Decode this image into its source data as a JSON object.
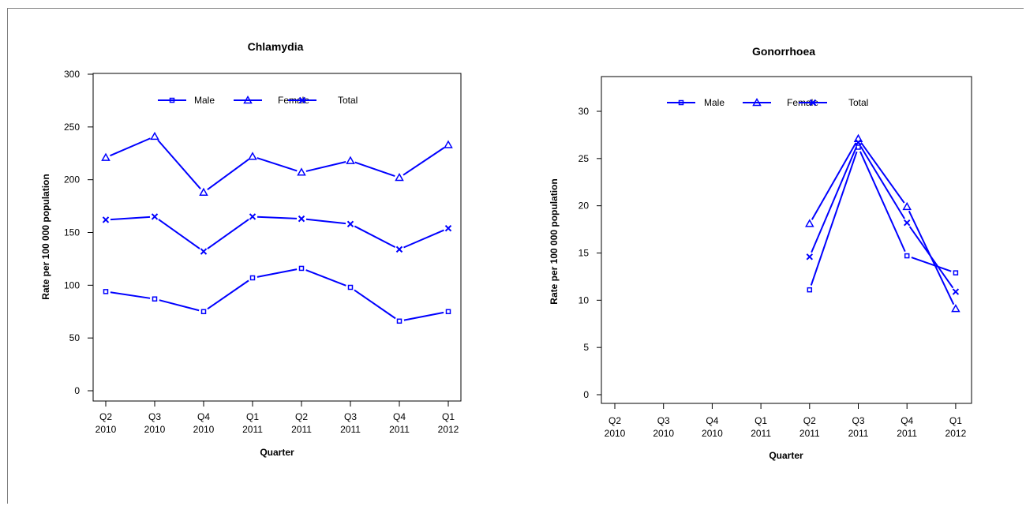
{
  "chart_data": [
    {
      "type": "line",
      "title": "Chlamydia",
      "xlabel": "Quarter",
      "ylabel": "Rate per 100 000 population",
      "categories": [
        [
          "Q2",
          "2010"
        ],
        [
          "Q3",
          "2010"
        ],
        [
          "Q4",
          "2010"
        ],
        [
          "Q1",
          "2011"
        ],
        [
          "Q2",
          "2011"
        ],
        [
          "Q3",
          "2011"
        ],
        [
          "Q4",
          "2011"
        ],
        [
          "Q1",
          "2012"
        ]
      ],
      "ylim": [
        0,
        300
      ],
      "yticks": [
        0,
        50,
        100,
        150,
        200,
        250,
        300
      ],
      "legend_position": "top",
      "series": [
        {
          "name": "Male",
          "marker": "square",
          "values": [
            94,
            87,
            75,
            107,
            116,
            98,
            66,
            75
          ]
        },
        {
          "name": "Female",
          "marker": "triangle",
          "values": [
            221,
            241,
            188,
            222,
            207,
            218,
            202,
            233
          ]
        },
        {
          "name": "Total",
          "marker": "cross",
          "values": [
            162,
            165,
            132,
            165,
            163,
            158,
            134,
            154
          ]
        }
      ],
      "color": "#0000ff"
    },
    {
      "type": "line",
      "title": "Gonorrhoea",
      "xlabel": "Quarter",
      "ylabel": "Rate per 100 000 population",
      "categories": [
        [
          "Q2",
          "2010"
        ],
        [
          "Q3",
          "2010"
        ],
        [
          "Q4",
          "2010"
        ],
        [
          "Q1",
          "2011"
        ],
        [
          "Q2",
          "2011"
        ],
        [
          "Q3",
          "2011"
        ],
        [
          "Q4",
          "2011"
        ],
        [
          "Q1",
          "2012"
        ]
      ],
      "ylim": [
        0,
        30
      ],
      "yticks": [
        0,
        5,
        10,
        15,
        20,
        25,
        30
      ],
      "legend_position": "top",
      "series": [
        {
          "name": "Male",
          "marker": "square",
          "values": [
            null,
            null,
            null,
            null,
            11.1,
            26.2,
            14.7,
            12.9
          ]
        },
        {
          "name": "Female",
          "marker": "triangle",
          "values": [
            null,
            null,
            null,
            null,
            18.1,
            27.1,
            19.9,
            9.1
          ]
        },
        {
          "name": "Total",
          "marker": "cross",
          "values": [
            null,
            null,
            null,
            null,
            14.6,
            26.7,
            18.2,
            10.9
          ]
        }
      ],
      "color": "#0000ff"
    }
  ]
}
